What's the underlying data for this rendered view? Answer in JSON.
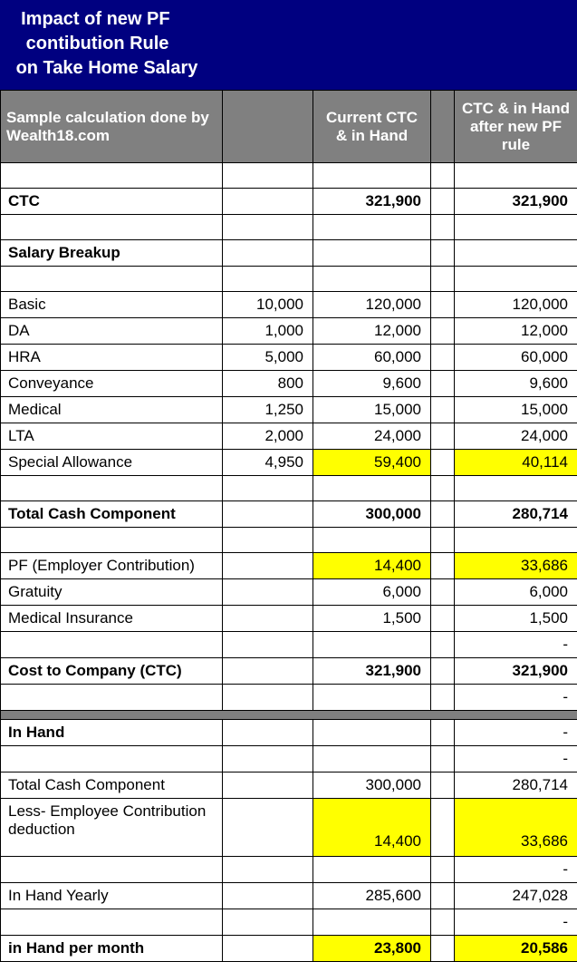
{
  "colors": {
    "title_bg": "#000080",
    "title_fg": "#ffffff",
    "header_bg": "#808080",
    "header_fg": "#ffffff",
    "highlight_bg": "#ffff00",
    "border": "#000000",
    "bg": "#ffffff"
  },
  "title": {
    "line1": "Impact of new PF",
    "line2": "contibution Rule",
    "line3": "on Take Home Salary"
  },
  "headers": {
    "label": "Sample calculation done by Wealth18.com",
    "month": "",
    "current": "Current CTC & in Hand",
    "gap": "",
    "new": "CTC & in Hand after new PF rule"
  },
  "rows": {
    "ctc": {
      "label": "CTC",
      "cur": "321,900",
      "new": "321,900"
    },
    "breakup_hdr": {
      "label": "Salary Breakup"
    },
    "basic": {
      "label": "Basic",
      "month": "10,000",
      "cur": "120,000",
      "new": "120,000"
    },
    "da": {
      "label": "DA",
      "month": "1,000",
      "cur": "12,000",
      "new": "12,000"
    },
    "hra": {
      "label": "HRA",
      "month": "5,000",
      "cur": "60,000",
      "new": "60,000"
    },
    "conveyance": {
      "label": "Conveyance",
      "month": "800",
      "cur": "9,600",
      "new": "9,600"
    },
    "medical": {
      "label": "Medical",
      "month": "1,250",
      "cur": "15,000",
      "new": "15,000"
    },
    "lta": {
      "label": "LTA",
      "month": "2,000",
      "cur": "24,000",
      "new": "24,000"
    },
    "special": {
      "label": "Special Allowance",
      "month": "4,950",
      "cur": "59,400",
      "new": "40,114"
    },
    "total_cash": {
      "label": "Total Cash Component",
      "cur": "300,000",
      "new": "280,714"
    },
    "pf_employer": {
      "label": "PF (Employer Contribution)",
      "cur": "14,400",
      "new": "33,686"
    },
    "gratuity": {
      "label": "Gratuity",
      "cur": "6,000",
      "new": "6,000"
    },
    "med_ins": {
      "label": "Medical Insurance",
      "cur": "1,500",
      "new": "1,500"
    },
    "dash1": {
      "new": "-"
    },
    "ctc_total": {
      "label": "Cost to Company (CTC)",
      "cur": "321,900",
      "new": "321,900"
    },
    "dash2": {
      "new": "-"
    },
    "in_hand_hdr": {
      "label": "In Hand",
      "new": "-"
    },
    "dash3": {
      "new": "-"
    },
    "tcc2": {
      "label": "Total Cash Component",
      "cur": "300,000",
      "new": "280,714"
    },
    "less_emp": {
      "label": "Less- Employee Contribution deduction",
      "cur": "14,400",
      "new": "33,686"
    },
    "dash4": {
      "new": "-"
    },
    "yearly": {
      "label": "In Hand Yearly",
      "cur": "285,600",
      "new": "247,028"
    },
    "dash5": {
      "new": "-"
    },
    "monthly": {
      "label": "in Hand per month",
      "cur": "23,800",
      "new": "20,586"
    }
  }
}
